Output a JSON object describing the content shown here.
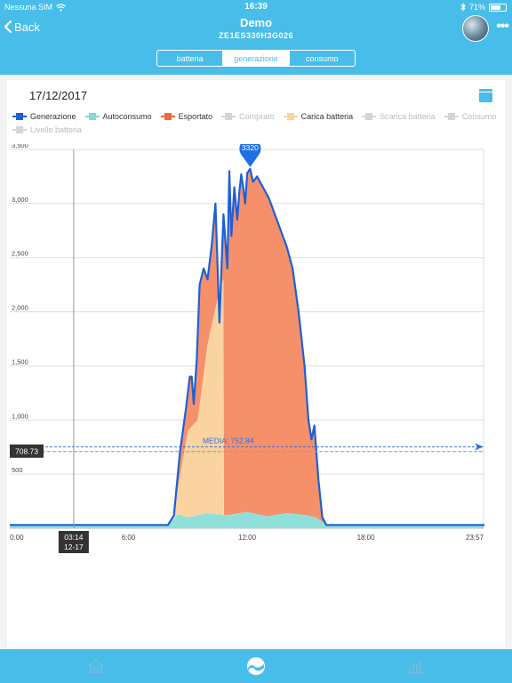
{
  "status_bar": {
    "carrier": "Nessuna SIM",
    "time": "16:39",
    "battery": "71%",
    "battery_level": 0.71
  },
  "header": {
    "back_label": "Back",
    "title": "Demo",
    "subtitle": "ZE1ES330H3G026"
  },
  "tabs": [
    {
      "label": "batteria",
      "active": false
    },
    {
      "label": "generazione",
      "active": true
    },
    {
      "label": "consumo",
      "active": false
    }
  ],
  "date": "17/12/2017",
  "legend": [
    {
      "label": "Generazione",
      "color": "#1f5fd6",
      "enabled": true
    },
    {
      "label": "Autoconsumo",
      "color": "#7fdcd6",
      "enabled": true
    },
    {
      "label": "Esportato",
      "color": "#ee6a3c",
      "enabled": true
    },
    {
      "label": "Comprato",
      "color": "#cccccc",
      "enabled": false
    },
    {
      "label": "Carica batteria",
      "color": "#f9d3a0",
      "enabled": true
    },
    {
      "label": "Scarica batteria",
      "color": "#cccccc",
      "enabled": false
    },
    {
      "label": "Consumo",
      "color": "#cccccc",
      "enabled": false
    },
    {
      "label": "Livello batteria",
      "color": "#cccccc",
      "enabled": false
    }
  ],
  "chart_data": {
    "type": "area",
    "x_tick_labels": [
      "0:00",
      "6:00",
      "12:00",
      "18:00",
      "23:57"
    ],
    "x_tick_hours": [
      0,
      6,
      12,
      18,
      23.95
    ],
    "y_tick_labels": [
      "500",
      "1,000",
      "1,500",
      "2,000",
      "2,500",
      "3,000",
      "3,500"
    ],
    "ylim": [
      0,
      3500
    ],
    "xlim": [
      0,
      23.95
    ],
    "grid": true,
    "peak_marker": {
      "value": "3320",
      "hour": 12.15,
      "y": 3320
    },
    "average": {
      "label": "MEDIA: 752.84",
      "value": 752.84
    },
    "crosshair": {
      "hour": 3.23,
      "time_label": "03:14",
      "date_label": "12-17",
      "value_label": "708.73",
      "value": 708.73
    },
    "series": [
      {
        "name": "Generazione",
        "color": "#1f5fd6",
        "x": [
          0,
          8.0,
          8.3,
          8.6,
          8.9,
          9.1,
          9.2,
          9.3,
          9.45,
          9.6,
          9.8,
          10.0,
          10.2,
          10.4,
          10.6,
          10.8,
          11.0,
          11.1,
          11.2,
          11.35,
          11.5,
          11.6,
          11.7,
          11.8,
          11.9,
          12.0,
          12.15,
          12.3,
          12.5,
          12.8,
          13.1,
          13.4,
          13.7,
          14.0,
          14.3,
          14.6,
          14.9,
          15.1,
          15.25,
          15.4,
          15.6,
          15.8,
          16.0,
          24
        ],
        "y": [
          30,
          30,
          120,
          700,
          1100,
          1400,
          1400,
          1150,
          1550,
          2250,
          2400,
          2300,
          2600,
          3000,
          1900,
          2900,
          2400,
          3300,
          2700,
          3150,
          2850,
          3100,
          3270,
          3150,
          3000,
          3280,
          3320,
          3200,
          3250,
          3150,
          3050,
          2900,
          2750,
          2600,
          2400,
          2000,
          1500,
          1000,
          820,
          950,
          450,
          100,
          30,
          30
        ]
      },
      {
        "name": "Autoconsumo",
        "color": "#7fdcd6",
        "x": [
          0,
          8.0,
          8.5,
          9.0,
          10.0,
          11.0,
          12.0,
          13.0,
          14.0,
          15.0,
          15.5,
          16.0,
          24
        ],
        "y": [
          30,
          30,
          130,
          100,
          140,
          120,
          150,
          110,
          140,
          120,
          100,
          30,
          30
        ]
      },
      {
        "name": "Carica batteria",
        "color": "#f9d3a0",
        "x": [
          8.2,
          9.0,
          9.5,
          10.0,
          10.6,
          10.8
        ],
        "y": [
          50,
          900,
          1000,
          1700,
          2200,
          2300
        ]
      }
    ]
  },
  "bottom_nav": [
    {
      "icon": "home-icon"
    },
    {
      "icon": "generation-icon"
    },
    {
      "icon": "bar-chart-icon"
    }
  ]
}
